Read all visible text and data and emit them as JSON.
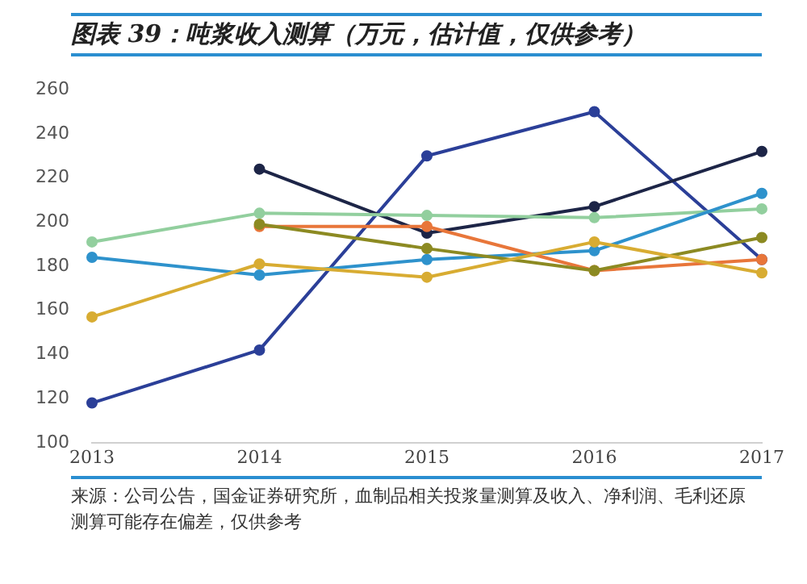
{
  "chart_data": {
    "type": "line",
    "title": "图表 39：吨浆收入测算（万元，估计值，仅供参考）",
    "categories": [
      "2013",
      "2014",
      "2015",
      "2016",
      "2017"
    ],
    "series": [
      {
        "color": "#2b3f98",
        "values": [
          118,
          142,
          230,
          250,
          183
        ]
      },
      {
        "color": "#1d2547",
        "values": [
          null,
          224,
          195,
          207,
          232
        ]
      },
      {
        "color": "#92cf9e",
        "values": [
          191,
          204,
          203,
          202,
          206
        ]
      },
      {
        "color": "#2e92cc",
        "values": [
          184,
          176,
          183,
          187,
          213
        ]
      },
      {
        "color": "#e8763a",
        "values": [
          null,
          198,
          198,
          178,
          183
        ]
      },
      {
        "color": "#8c8a22",
        "values": [
          null,
          199,
          188,
          178,
          193
        ]
      },
      {
        "color": "#d8ac32",
        "values": [
          157,
          181,
          175,
          191,
          177
        ]
      }
    ],
    "ylim": [
      100,
      260
    ],
    "yticks": [
      100,
      120,
      140,
      160,
      180,
      200,
      220,
      240,
      260
    ],
    "grid": false,
    "legend": false,
    "marker": "circle",
    "line_style": "solid",
    "annotations": [
      "来源：公司公告，国金证券研究所，血制品相关投浆量测算及收入、净利润、毛利还原测算可能存在偏差，仅供参考"
    ]
  }
}
